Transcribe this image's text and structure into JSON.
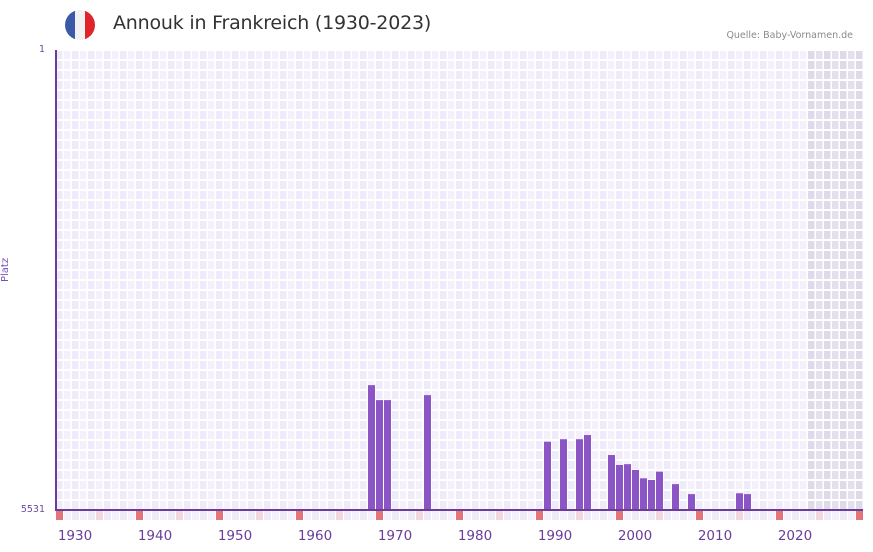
{
  "header": {
    "title": "Annouk in Frankreich (1930-2023)",
    "source": "Quelle: Baby-Vornamen.de",
    "flag_colors": [
      "#3a5aa8",
      "#f2f2f2",
      "#e0242c"
    ]
  },
  "colors": {
    "bar": "#8b55c6",
    "axis": "#6a3d9a",
    "cell_a": "#efeaf9",
    "cell_b": "#f4f1fb",
    "cell_shaded": "#e2dfec",
    "marker_strong": "#e5737a",
    "marker_light": "#f5d6de"
  },
  "axis": {
    "y_top_label": "1",
    "y_bottom_label": "5531",
    "y_title": "Platz",
    "x_labels": [
      "1930",
      "1940",
      "1950",
      "1960",
      "1970",
      "1980",
      "1990",
      "2000",
      "2010",
      "2020"
    ]
  },
  "chart_data": {
    "type": "bar",
    "title": "Annouk in Frankreich (1930-2023)",
    "xlabel": "",
    "ylabel": "Platz",
    "ylim": [
      5531,
      1
    ],
    "y_inverted": true,
    "grid": true,
    "legend": null,
    "x_range": [
      1928,
      2028
    ],
    "shaded_region_start": 2022,
    "categories": [
      1967,
      1968,
      1969,
      1974,
      1989,
      1991,
      1993,
      1994,
      1997,
      1998,
      1999,
      2000,
      2001,
      2002,
      2003,
      2005,
      2007,
      2013,
      2014
    ],
    "values": [
      4030,
      4210,
      4210,
      4150,
      4710,
      4680,
      4680,
      4630,
      4870,
      4990,
      4980,
      5050,
      5150,
      5170,
      5070,
      5220,
      5340,
      5330,
      5340
    ],
    "x_tick_labels": [
      "1930",
      "1940",
      "1950",
      "1960",
      "1970",
      "1980",
      "1990",
      "2000",
      "2010",
      "2020"
    ],
    "y_tick_labels": [
      "1",
      "5531"
    ],
    "annotation": "Quelle: Baby-Vornamen.de"
  }
}
